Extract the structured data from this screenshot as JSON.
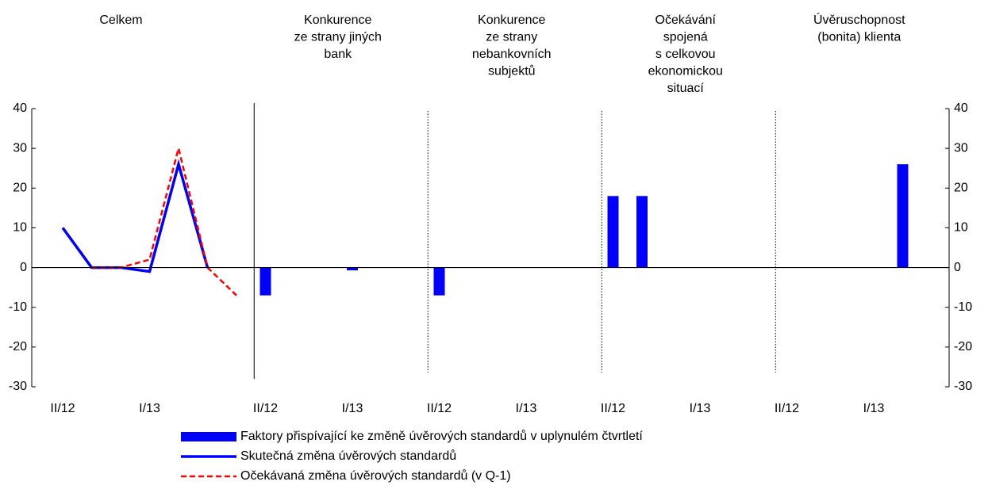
{
  "chart_data": {
    "type": "combo",
    "panels": [
      {
        "title": [
          "Celkem"
        ]
      },
      {
        "title": [
          "Konkurence",
          "ze strany jiných",
          "bank"
        ]
      },
      {
        "title": [
          "Konkurence",
          "ze strany",
          "nebankovních",
          "subjektů"
        ]
      },
      {
        "title": [
          "Očekávání",
          "spojená",
          "s celkovou",
          "ekonomickou",
          "situací"
        ]
      },
      {
        "title": [
          "Úvěruschopnost",
          "(bonita) klienta"
        ]
      }
    ],
    "categories": [
      "II/12",
      null,
      null,
      "I/13",
      null,
      null,
      null,
      "II/12",
      null,
      null,
      "I/13",
      null,
      null,
      "II/12",
      null,
      null,
      "I/13",
      null,
      null,
      "II/12",
      null,
      null,
      "I/13",
      null,
      null,
      "II/12",
      null,
      null,
      "I/13",
      null,
      null
    ],
    "series": [
      {
        "name": "Faktory přispívající ke změně úvěrových standardů v uplynulém čtvrtletí",
        "kind": "bar",
        "color": "#0000ff",
        "values": [
          null,
          null,
          null,
          null,
          null,
          null,
          null,
          -7,
          null,
          null,
          -0.7,
          null,
          null,
          -7,
          null,
          null,
          null,
          null,
          null,
          18,
          18,
          null,
          null,
          null,
          null,
          null,
          null,
          null,
          null,
          26,
          null
        ]
      },
      {
        "name": "Skutečná změna úvěrových standardů",
        "kind": "line",
        "color": "#0000ff",
        "values": [
          10,
          0,
          0,
          -1,
          26,
          0,
          null,
          null,
          null,
          null,
          null,
          null,
          null,
          null,
          null,
          null,
          null,
          null,
          null,
          null,
          null,
          null,
          null,
          null,
          null,
          null,
          null,
          null,
          null,
          null,
          null
        ]
      },
      {
        "name": "Očekávaná změna úvěrových standardů (v Q-1)",
        "kind": "dashed",
        "color": "#ff0000",
        "values": [
          null,
          0,
          0,
          2,
          30,
          0,
          -7,
          null,
          null,
          null,
          null,
          null,
          null,
          null,
          null,
          null,
          null,
          null,
          null,
          null,
          null,
          null,
          null,
          null,
          null,
          null,
          null,
          null,
          null,
          null,
          null
        ]
      }
    ],
    "ylim": [
      -30,
      40
    ],
    "yticks": [
      -30,
      -20,
      -10,
      0,
      10,
      20,
      30,
      40
    ],
    "y2lim": [
      -30,
      40
    ],
    "y2ticks": [
      -30,
      -20,
      -10,
      0,
      10,
      20,
      30,
      40
    ]
  }
}
